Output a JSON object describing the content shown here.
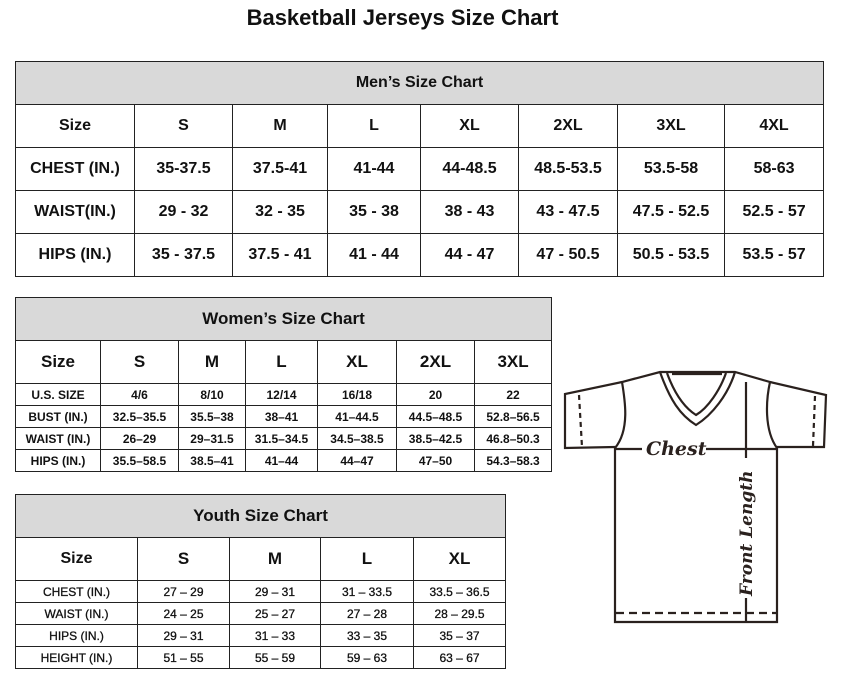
{
  "title": "Basketball Jerseys Size Chart",
  "men": {
    "caption": "Men’s Size Chart",
    "header": [
      "Size",
      "S",
      "M",
      "L",
      "XL",
      "2XL",
      "3XL",
      "4XL"
    ],
    "rows": [
      [
        "CHEST (IN.)",
        "35-37.5",
        "37.5-41",
        "41-44",
        "44-48.5",
        "48.5-53.5",
        "53.5-58",
        "58-63"
      ],
      [
        "WAIST(IN.)",
        "29 - 32",
        "32 - 35",
        "35 - 38",
        "38 - 43",
        "43 - 47.5",
        "47.5 - 52.5",
        "52.5 - 57"
      ],
      [
        "HIPS (IN.)",
        "35 - 37.5",
        "37.5 - 41",
        "41 - 44",
        "44 - 47",
        "47 - 50.5",
        "50.5 - 53.5",
        "53.5 - 57"
      ]
    ]
  },
  "women": {
    "caption": "Women’s Size Chart",
    "header": [
      "Size",
      "S",
      "M",
      "L",
      "XL",
      "2XL",
      "3XL"
    ],
    "rows": [
      [
        "U.S.  SIZE",
        "4/6",
        "8/10",
        "12/14",
        "16/18",
        "20",
        "22"
      ],
      [
        "BUST  (IN.)",
        "32.5–35.5",
        "35.5–38",
        "38–41",
        "41–44.5",
        "44.5–48.5",
        "52.8–56.5"
      ],
      [
        "WAIST  (IN.)",
        "26–29",
        "29–31.5",
        "31.5–34.5",
        "34.5–38.5",
        "38.5–42.5",
        "46.8–50.3"
      ],
      [
        "HIPS  (IN.)",
        "35.5–58.5",
        "38.5–41",
        "41–44",
        "44–47",
        "47–50",
        "54.3–58.3"
      ]
    ]
  },
  "youth": {
    "caption": "Youth Size Chart",
    "header": [
      "Size",
      "S",
      "M",
      "L",
      "XL"
    ],
    "rows": [
      [
        "CHEST  (IN.)",
        "27  –  29",
        "29  –  31",
        "31  –  33.5",
        "33.5  –  36.5"
      ],
      [
        "WAIST  (IN.)",
        "24  –  25",
        "25  –  27",
        "27  –  28",
        "28  –  29.5"
      ],
      [
        "HIPS  (IN.)",
        "29  –  31",
        "31  –  33",
        "33  –  35",
        "35  –  37"
      ],
      [
        "HEIGHT  (IN.)",
        "51  –  55",
        "55  –  59",
        "59  –  63",
        "63  –  67"
      ]
    ]
  },
  "diagram": {
    "chest_label": "Chest",
    "length_label": "Front Length"
  },
  "colors": {
    "caption_bg": "#d9d9d9",
    "line": "#2a211e"
  }
}
